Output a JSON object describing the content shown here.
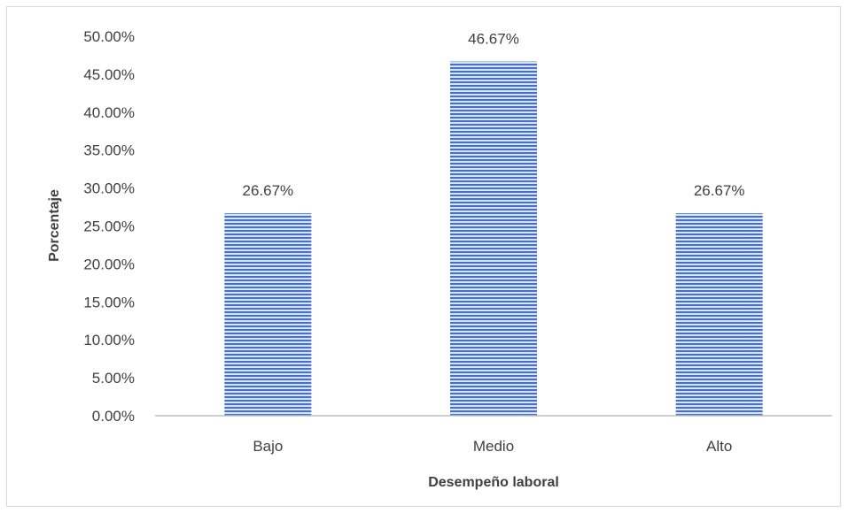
{
  "chart_data": {
    "type": "bar",
    "title": "",
    "xlabel": "Desempeño laboral",
    "ylabel": "Porcentaje",
    "categories": [
      "Bajo",
      "Medio",
      "Alto"
    ],
    "values": [
      26.67,
      46.67,
      26.67
    ],
    "data_labels": [
      "26.67%",
      "46.67%",
      "26.67%"
    ],
    "ylim": [
      0,
      50
    ],
    "yticks": [
      0,
      5,
      10,
      15,
      20,
      25,
      30,
      35,
      40,
      45,
      50
    ],
    "ytick_labels": [
      "0.00%",
      "5.00%",
      "10.00%",
      "15.00%",
      "20.00%",
      "25.00%",
      "30.00%",
      "35.00%",
      "40.00%",
      "45.00%",
      "50.00%"
    ],
    "grid": false,
    "legend": "none",
    "bar_fill": "horizontal-stripes",
    "colors": {
      "bar_stripe": "#4472c4",
      "bar_background": "#dae3f3",
      "axis": "#bfbfbf",
      "text": "#404040",
      "border": "#d9d9d9"
    }
  }
}
